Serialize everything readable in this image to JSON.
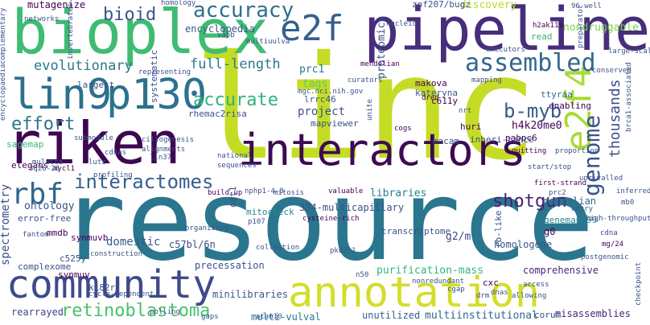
{
  "colors": {
    "purple": "#440154",
    "indigo": "#3b528b",
    "blue": "#31688e",
    "teal": "#21918c",
    "green": "#35b779",
    "lime": "#90d743",
    "yellow": "#dbe02a",
    "pale": "#c3d55a"
  },
  "words": {
    "linc": "linc",
    "resource": "resource",
    "bioplex": "bioplex",
    "pipeline": "pipeline",
    "riken": "riken",
    "interactors": "interactors",
    "community": "community",
    "annotation": "annotation",
    "lin9": "lin9",
    "p130": "p130",
    "e2f": "e2f",
    "e2f4": "e2f4",
    "rbf": "rbf",
    "assembled": "assembled",
    "accuracy": "accuracy",
    "bioid": "bioid",
    "genome": "genome",
    "interactomes": "interactomes",
    "retinoblastoma": "retinoblastoma",
    "effort": "effort",
    "accurate": "accurate",
    "b_myb": "b-myb",
    "shotgun": "shotgun",
    "thousands": "thousands",
    "full_length": "full-length",
    "evolutionary": "evolutionary",
    "encyclopedia": "encyclopedia",
    "discovery": "discovery",
    "nondruggable": "nondruggable",
    "mutagenize": "mutagenize",
    "znf207": "znf207/bugz",
    "spectrometry": "spectrometry",
    "ontology": "ontology",
    "domestic": "domestic",
    "c57bl": "c57bl/6n",
    "libraries": "libraries",
    "mammalian": "mammalian",
    "project": "project",
    "tags": "tags",
    "proteomics": "proteomics",
    "prc1": "prc1",
    "h4k20me0": "h4k20me0",
    "multi_vulval": "multi-vulval",
    "purification_mass": "purification-mass",
    "comprehensive": "comprehensive",
    "multiinstitutional": "multiinstitutional",
    "misassemblies": "misassemblies",
    "minilibraries": "minilibraries",
    "rearrayed": "rearrayed",
    "unutilized": "unutilized",
    "corum": "corum",
    "interactions_384": "384-multicapillary",
    "mitocheck": "mitocheck",
    "precessation": "precessation",
    "homologene": "homologene",
    "transcriptome": "transcriptome",
    "genemap99": "genemap'99",
    "g2m": "g2/m",
    "rb_like": "rb-like",
    "mapviewer": "mapviewer",
    "c611y": "c611y",
    "lrrc46": "lrrc46",
    "rhemac2risa": "rhemac2risa",
    "makova": "makova",
    "kateryna": "kateryna",
    "pabpc6": "pabpc6",
    "ttyraa": "ttyraa",
    "enabling": "enabling",
    "huri": "huri",
    "macam": "macam",
    "inheri_tance": "inheri-tance",
    "synmuvb": "synmuvb",
    "synmuv": "synmuv",
    "k182r": "k182r",
    "c525y": "c525y",
    "mmdb": "mmdb",
    "complexome": "complexome",
    "error_free": "error-free",
    "elegans": "elegans",
    "largest": "largest",
    "systematic": "systematic",
    "sagemap": "sagemap",
    "ogt1": "ogt1",
    "cxc": "cxc",
    "g0": "g0",
    "read": "read",
    "homology": "homology",
    "networks": "networks",
    "mendelian": "mendelian",
    "curators": "curators",
    "large_scale": "large-scale",
    "executors": "executors",
    "h2ak119": "h2ak119",
    "conserved": "conserved",
    "brca1": "brca1-associated",
    "mgc": "mgc.nci.nih.gov",
    "nrt": "nrt",
    "dred": "dred",
    "cogs": "cogs",
    "quitting": "quitting",
    "proportion": "proportion",
    "access": "access",
    "dnas": "dnas",
    "allowing": "allowing",
    "drm": "drm",
    "cgap": "cgap",
    "n50": "n50",
    "collection": "collection",
    "pkd2l1": "pkd2l1",
    "p107": "p107",
    "cysteine_rich": "cysteine-rich",
    "nphp": "nphp1-4-8",
    "valuable": "valuable",
    "build_up": "build-up",
    "national": "national",
    "lin37": "lin37",
    "ciliogenesis": "ciliogenesis",
    "alignments": "alignments",
    "cdnas": "cdnas",
    "profiling": "profiling",
    "lutz": "lutz",
    "mycl1": "mycl1",
    "3q26": "3q26-28",
    "encyclopaedia": "encyclopaedia",
    "complementary": "complementary",
    "mulatta": "mulatta",
    "submodule": "submodule",
    "fantom": "fantom",
    "construction": "construction",
    "cycle_dependent": "cycle-dependent",
    "polling": "polling",
    "atan10": "atan10",
    "gaps": "gaps",
    "nonredundant": "nonredundant",
    "entry": "entry",
    "high_throughput": "high-throughput",
    "cdna": "cdna",
    "mg24": "mg/24",
    "postgenomic": "postgenomic",
    "first_strand": "first-strand",
    "inferred": "inferred",
    "mb0": "mb0",
    "start_stop": "start/stop",
    "organizing": "organizing",
    "unrivalled": "unrivalled",
    "prc2": "prc2",
    "mitosis": "mitosis",
    "sequences": "sequences",
    "representing": "representing",
    "vapb": "vapb",
    "multiuulva": "multiuulva",
    "nucleic": "nucleic",
    "mapping": "mapping",
    "preparator": "preparator",
    "invertebrates": "invertebrates",
    "96well": "96-well",
    "unite": "unite",
    "checkpoint": "checkpoint"
  }
}
